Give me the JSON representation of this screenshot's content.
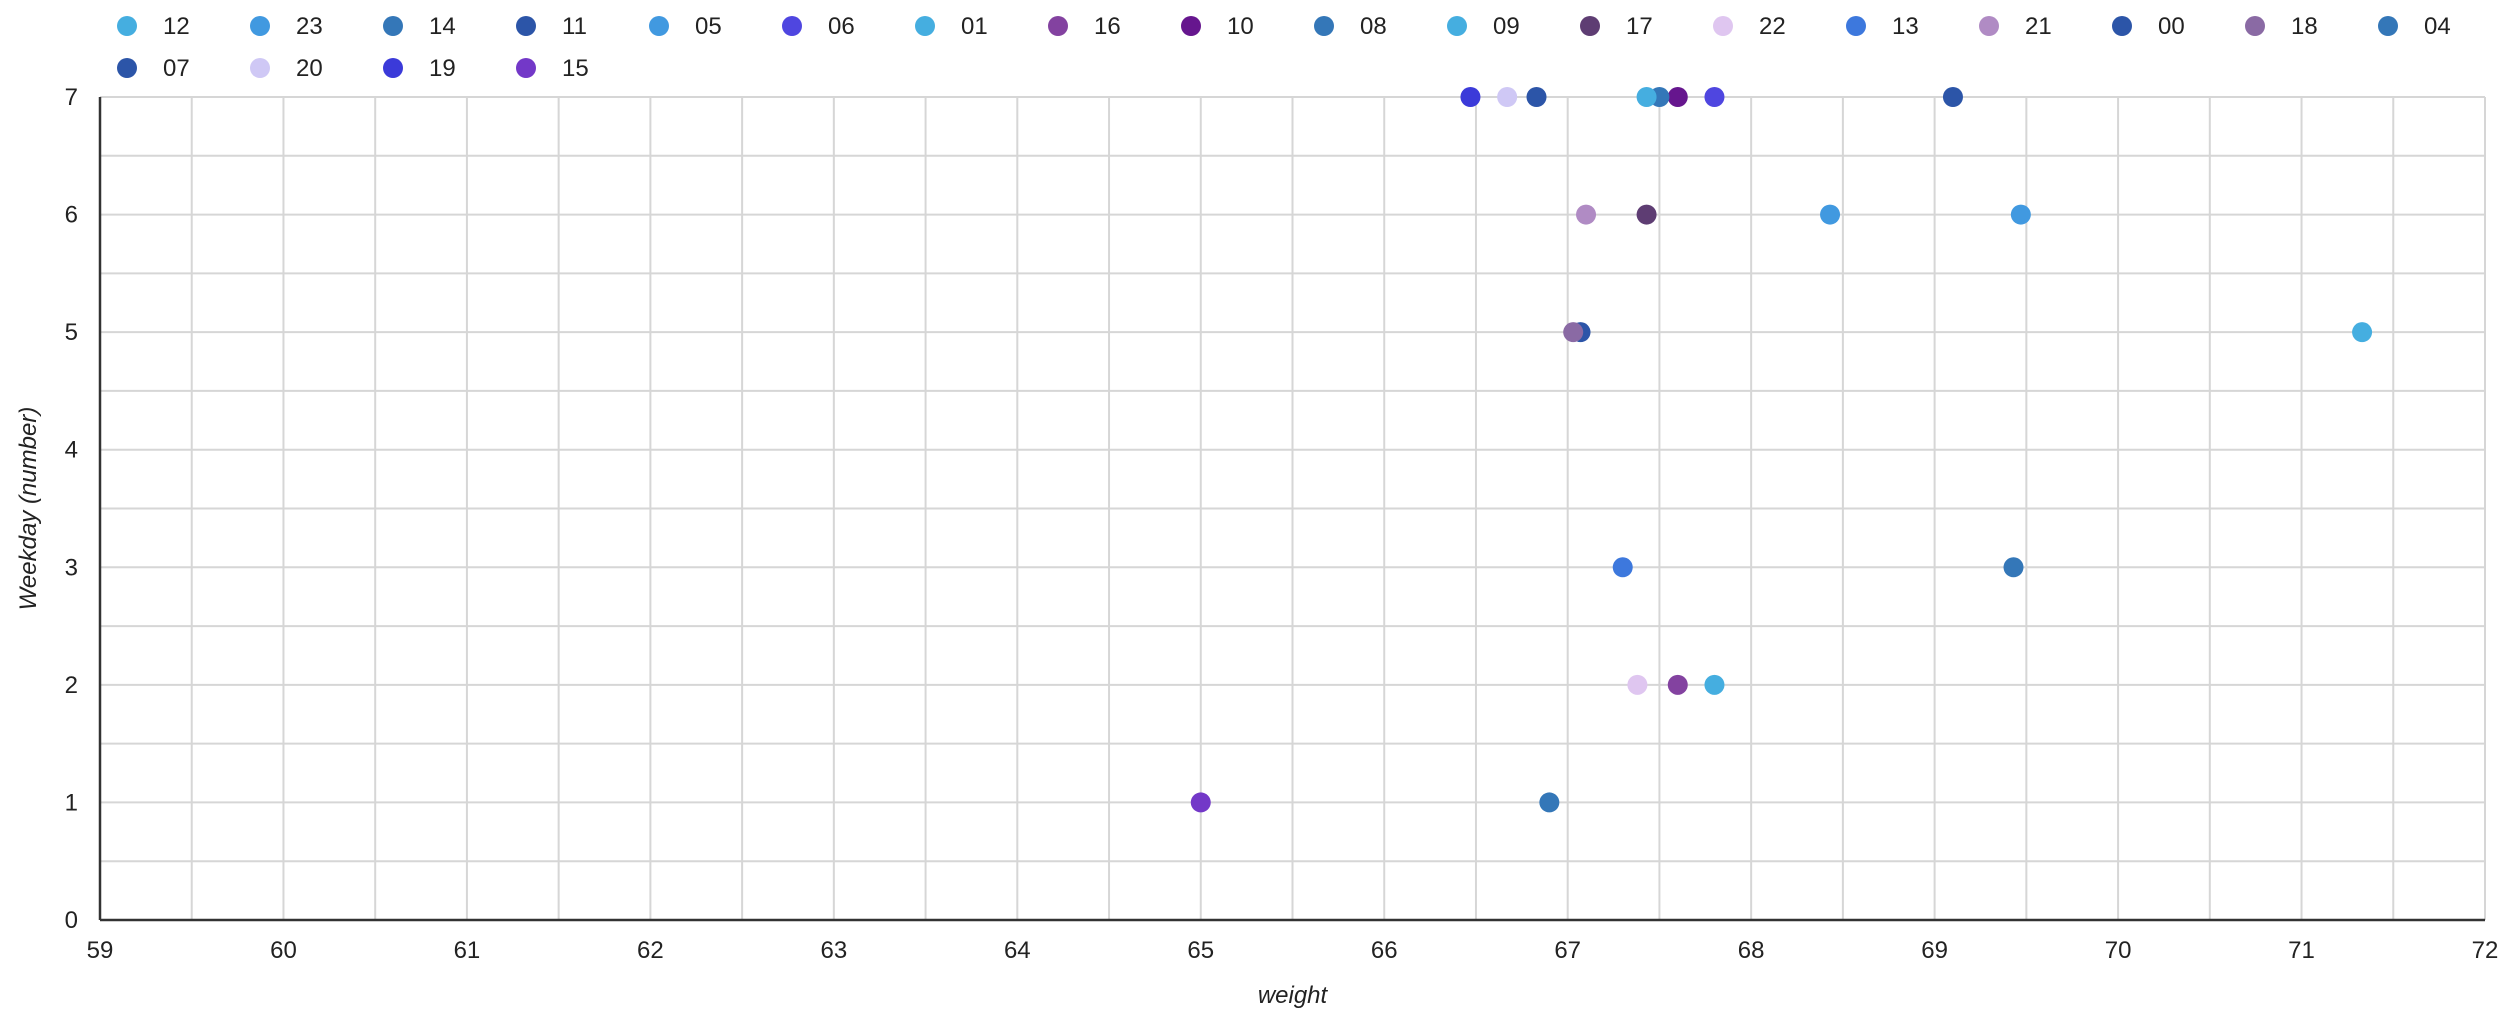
{
  "chart_data": {
    "type": "scatter",
    "xlabel": "weight",
    "ylabel": "Weekday (number)",
    "xlim": [
      59,
      72
    ],
    "ylim": [
      0,
      7
    ],
    "x_ticks": [
      59,
      60,
      61,
      62,
      63,
      64,
      65,
      66,
      67,
      68,
      69,
      70,
      71,
      72
    ],
    "y_ticks": [
      0,
      1,
      2,
      3,
      4,
      5,
      6,
      7
    ],
    "grid": true,
    "legend_position": "top",
    "series": [
      {
        "name": "12",
        "color": "#45aee0",
        "points": [
          {
            "x": 71.33,
            "y": 5
          }
        ]
      },
      {
        "name": "23",
        "color": "#4199e0",
        "points": [
          {
            "x": 69.47,
            "y": 6
          }
        ]
      },
      {
        "name": "14",
        "color": "#3477b8",
        "points": [
          {
            "x": 69.43,
            "y": 3
          }
        ]
      },
      {
        "name": "11",
        "color": "#2c55a8",
        "points": [
          {
            "x": 69.1,
            "y": 7
          }
        ]
      },
      {
        "name": "05",
        "color": "#4199e0",
        "points": [
          {
            "x": 68.43,
            "y": 6
          }
        ]
      },
      {
        "name": "06",
        "color": "#4f46e0",
        "points": [
          {
            "x": 67.8,
            "y": 7
          }
        ]
      },
      {
        "name": "01",
        "color": "#45aee0",
        "points": [
          {
            "x": 67.8,
            "y": 2
          }
        ]
      },
      {
        "name": "16",
        "color": "#8342a0",
        "points": [
          {
            "x": 67.6,
            "y": 2
          }
        ]
      },
      {
        "name": "10",
        "color": "#66168e",
        "points": [
          {
            "x": 67.6,
            "y": 7
          }
        ]
      },
      {
        "name": "08",
        "color": "#3477b8",
        "points": [
          {
            "x": 67.5,
            "y": 7
          }
        ]
      },
      {
        "name": "09",
        "color": "#45aee0",
        "points": [
          {
            "x": 67.43,
            "y": 7
          }
        ]
      },
      {
        "name": "17",
        "color": "#5e3d73",
        "points": [
          {
            "x": 67.43,
            "y": 6
          }
        ]
      },
      {
        "name": "22",
        "color": "#dfc6f0",
        "points": [
          {
            "x": 67.38,
            "y": 2
          }
        ]
      },
      {
        "name": "13",
        "color": "#3d78dd",
        "points": [
          {
            "x": 67.3,
            "y": 3
          }
        ]
      },
      {
        "name": "21",
        "color": "#b08bc4",
        "points": [
          {
            "x": 67.1,
            "y": 6
          }
        ]
      },
      {
        "name": "00",
        "color": "#2c55a8",
        "points": [
          {
            "x": 67.07,
            "y": 5
          }
        ]
      },
      {
        "name": "18",
        "color": "#8a6aa4",
        "points": [
          {
            "x": 67.03,
            "y": 5
          }
        ]
      },
      {
        "name": "04",
        "color": "#3477b8",
        "points": [
          {
            "x": 66.9,
            "y": 1
          }
        ]
      },
      {
        "name": "07",
        "color": "#2c55a8",
        "points": [
          {
            "x": 66.83,
            "y": 7
          }
        ]
      },
      {
        "name": "20",
        "color": "#cfc8f5",
        "points": [
          {
            "x": 66.67,
            "y": 7
          }
        ]
      },
      {
        "name": "19",
        "color": "#3b3ad9",
        "points": [
          {
            "x": 66.47,
            "y": 7
          }
        ]
      },
      {
        "name": "15",
        "color": "#7338c8",
        "points": [
          {
            "x": 65.0,
            "y": 1
          }
        ]
      }
    ]
  }
}
